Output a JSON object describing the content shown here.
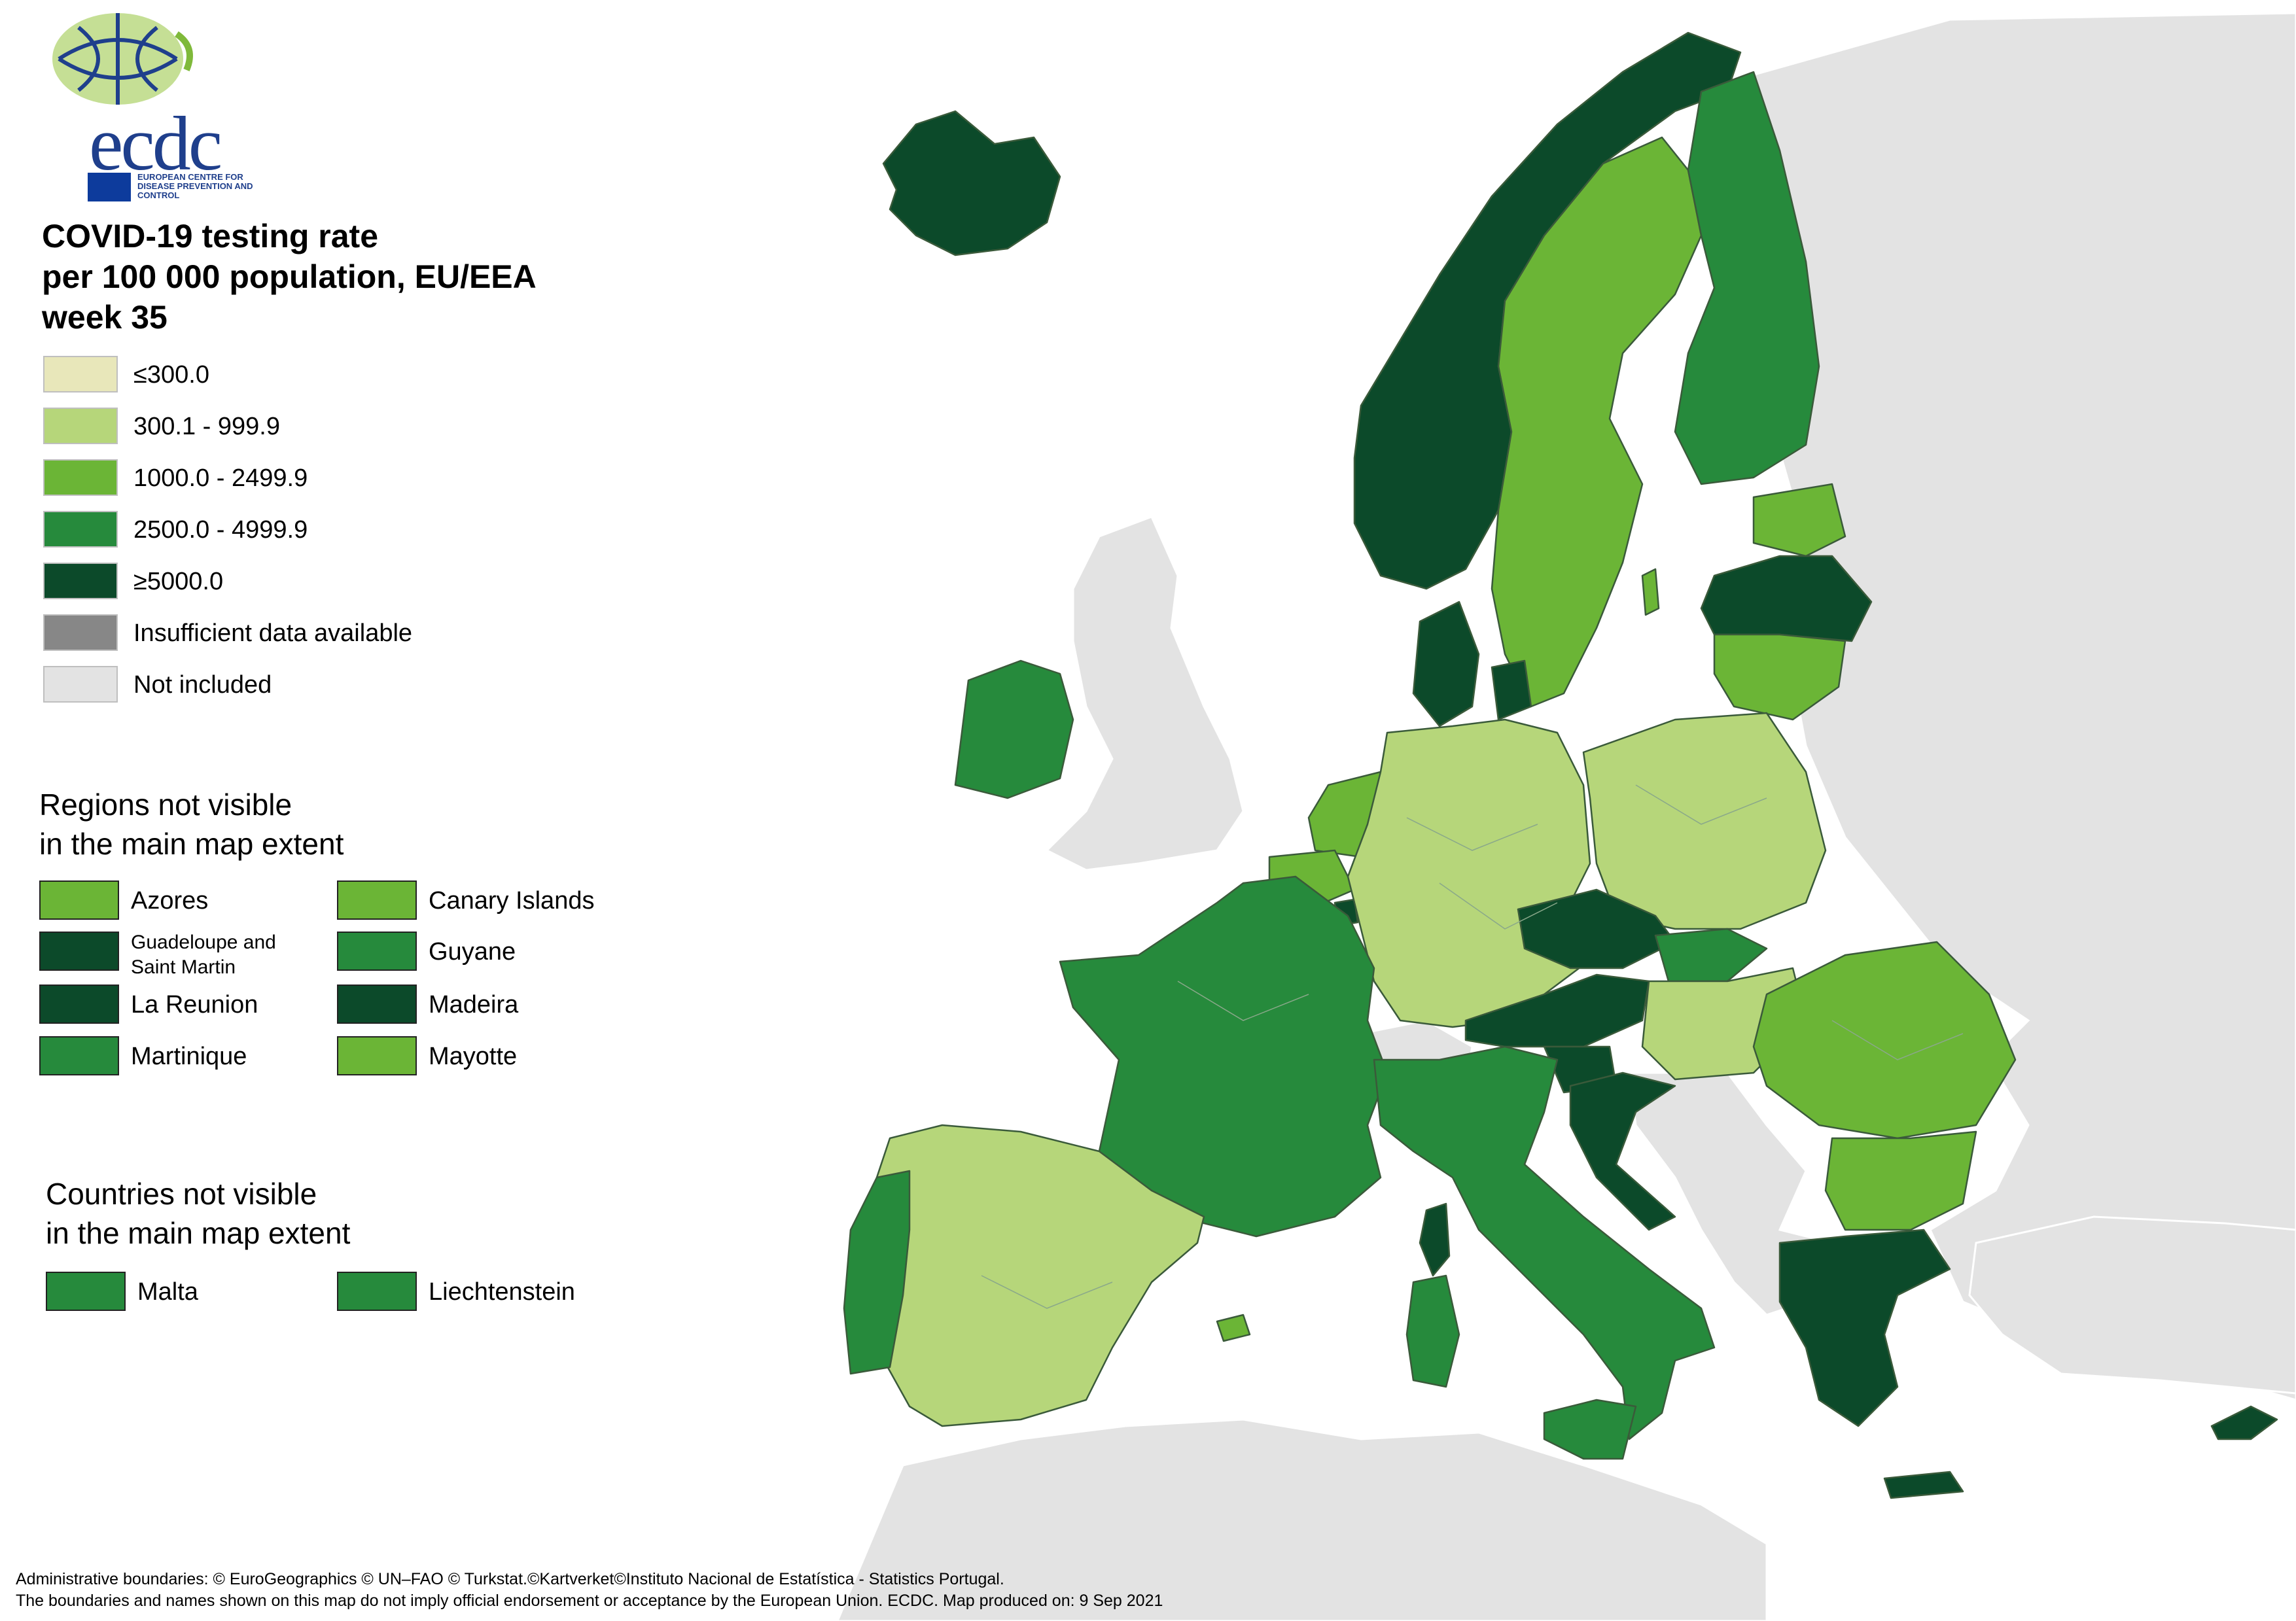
{
  "logo": {
    "text": "ecdc",
    "subtitle": "EUROPEAN CENTRE FOR DISEASE PREVENTION AND CONTROL"
  },
  "title": {
    "line1": "COVID-19 testing rate",
    "line2": "per 100 000 population, EU/EEA",
    "line3": "week 35"
  },
  "colors": {
    "class1": "#e8e7ba",
    "class2": "#b6d67a",
    "class3": "#6bb536",
    "class4": "#268a3c",
    "class5": "#0c4a2a",
    "insufficient": "#878787",
    "not_included": "#e3e3e3",
    "sea": "#ffffff",
    "borders": "#7a9a7a"
  },
  "legend": [
    {
      "label": "≤300.0",
      "color": "#e8e7ba"
    },
    {
      "label": "300.1 - 999.9",
      "color": "#b6d67a"
    },
    {
      "label": "1000.0 - 2499.9",
      "color": "#6bb536"
    },
    {
      "label": "2500.0 - 4999.9",
      "color": "#268a3c"
    },
    {
      "label": "≥5000.0",
      "color": "#0c4a2a"
    },
    {
      "label": "Insufficient data available",
      "color": "#878787"
    },
    {
      "label": "Not included",
      "color": "#e3e3e3"
    }
  ],
  "regions": {
    "heading_line1": "Regions not visible",
    "heading_line2": "in the main map extent",
    "items": [
      {
        "label": "Azores",
        "color": "#6bb536"
      },
      {
        "label": "Canary Islands",
        "color": "#6bb536"
      },
      {
        "label": "Guadeloupe and Saint Martin",
        "color": "#0c4a2a"
      },
      {
        "label": "Guyane",
        "color": "#268a3c"
      },
      {
        "label": "La Reunion",
        "color": "#0c4a2a"
      },
      {
        "label": "Madeira",
        "color": "#0c4a2a"
      },
      {
        "label": "Martinique",
        "color": "#268a3c"
      },
      {
        "label": "Mayotte",
        "color": "#6bb536"
      }
    ]
  },
  "countries": {
    "heading_line1": "Countries not visible",
    "heading_line2": "in the main map extent",
    "items": [
      {
        "label": "Malta",
        "color": "#268a3c"
      },
      {
        "label": "Liechtenstein",
        "color": "#268a3c"
      }
    ]
  },
  "footer": {
    "line1": "Administrative boundaries: © EuroGeographics © UN–FAO © Turkstat.©Kartverket©Instituto Nacional de Estatística - Statistics Portugal.",
    "line2": "The boundaries and names shown on this map do not imply official endorsement or acceptance by the European Union. ECDC. Map produced on: 9 Sep 2021"
  },
  "map_regions": [
    {
      "name": "Iceland",
      "class": "class5"
    },
    {
      "name": "Norway",
      "class": "class5"
    },
    {
      "name": "Sweden",
      "class": "class3"
    },
    {
      "name": "Finland",
      "class": "class4"
    },
    {
      "name": "Estonia",
      "class": "class3"
    },
    {
      "name": "Latvia",
      "class": "class5"
    },
    {
      "name": "Lithuania",
      "class": "class3"
    },
    {
      "name": "Denmark",
      "class": "class5"
    },
    {
      "name": "Ireland",
      "class": "class4"
    },
    {
      "name": "Netherlands",
      "class": "class3"
    },
    {
      "name": "Belgium",
      "class": "class3"
    },
    {
      "name": "Luxembourg",
      "class": "class5"
    },
    {
      "name": "Germany",
      "class": "class2"
    },
    {
      "name": "Poland",
      "class": "class2"
    },
    {
      "name": "Czechia",
      "class": "class5"
    },
    {
      "name": "Slovakia",
      "class": "class4"
    },
    {
      "name": "Austria",
      "class": "class5"
    },
    {
      "name": "Hungary",
      "class": "class2"
    },
    {
      "name": "Slovenia",
      "class": "class5"
    },
    {
      "name": "Croatia",
      "class": "class5"
    },
    {
      "name": "Romania",
      "class": "class3"
    },
    {
      "name": "Bulgaria",
      "class": "class3"
    },
    {
      "name": "Greece",
      "class": "class5"
    },
    {
      "name": "Cyprus",
      "class": "class5"
    },
    {
      "name": "France",
      "class": "class4"
    },
    {
      "name": "Spain",
      "class": "class2"
    },
    {
      "name": "Portugal",
      "class": "class4"
    },
    {
      "name": "Italy",
      "class": "class4"
    },
    {
      "name": "Corsica",
      "class": "class5"
    },
    {
      "name": "Sardinia",
      "class": "class4"
    },
    {
      "name": "Sicily",
      "class": "class4"
    },
    {
      "name": "Balearic Islands",
      "class": "class3"
    },
    {
      "name": "Switzerland",
      "class": "not_included"
    },
    {
      "name": "United Kingdom",
      "class": "not_included"
    }
  ]
}
